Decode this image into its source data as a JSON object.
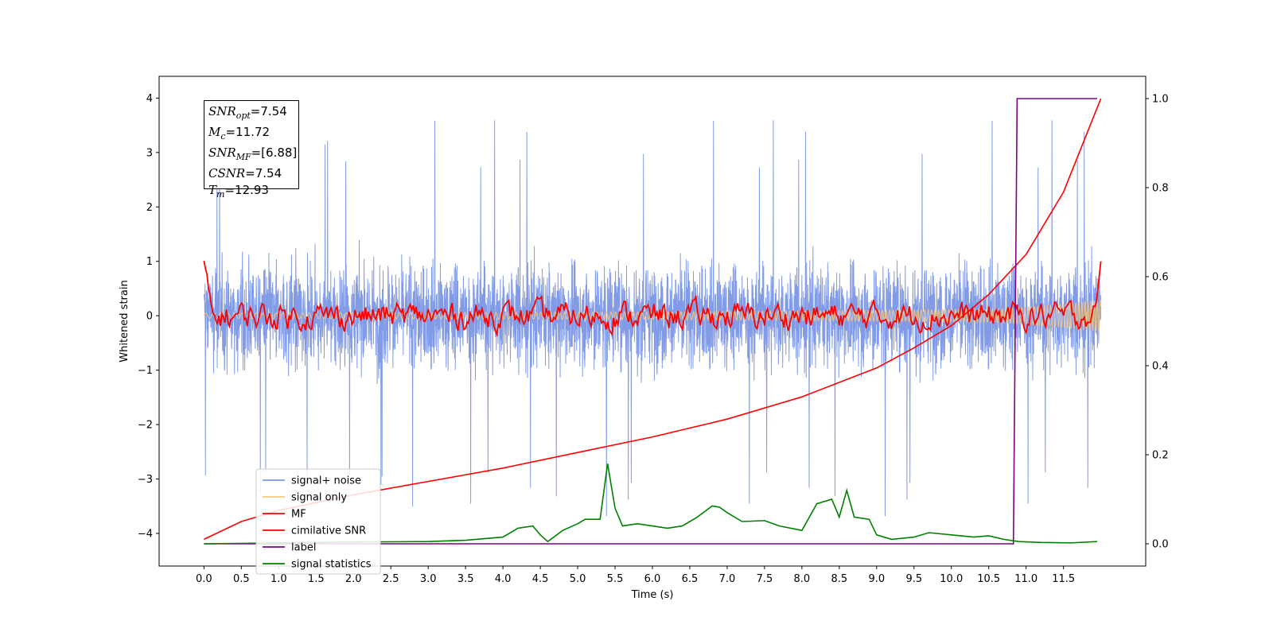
{
  "chart_data": {
    "type": "line",
    "xlabel": "Time (s)",
    "ylabel": "Whitened strain",
    "xlim": [
      -0.6,
      12.6
    ],
    "ylim": [
      -4.6,
      4.4
    ],
    "y2lim": [
      -0.05,
      1.05
    ],
    "x_ticks": [
      "0.0",
      "0.5",
      "1.0",
      "1.5",
      "2.0",
      "2.5",
      "3.0",
      "3.5",
      "4.0",
      "4.5",
      "5.0",
      "5.5",
      "6.0",
      "6.5",
      "7.0",
      "7.5",
      "8.0",
      "8.5",
      "9.0",
      "9.5",
      "10.0",
      "10.5",
      "11.0",
      "11.5"
    ],
    "y_ticks": [
      "4",
      "3",
      "2",
      "1",
      "0",
      "−1",
      "−2",
      "−3",
      "−4"
    ],
    "y2_ticks": [
      "1.0",
      "0.8",
      "0.6",
      "0.4",
      "0.2",
      "0.0"
    ],
    "annotation": {
      "snr_opt": {
        "sym": "SNR",
        "sub": "opt",
        "value": "=7.54"
      },
      "mc": {
        "sym": "M",
        "sub": "c",
        "value": "=11.72"
      },
      "snr_mf": {
        "sym": "SNR",
        "sub": "MF",
        "value": "=[6.88]"
      },
      "csnr": {
        "sym": "CSNR",
        "sub": "",
        "value": "=7.54"
      },
      "tm": {
        "sym": "T",
        "sub": "m",
        "value": "=12.93"
      }
    },
    "legend_position": "lower-left",
    "series": [
      {
        "name": "signal+ noise",
        "color": "#7b96e6",
        "axis": "left",
        "description_values": {
          "std": 1.0,
          "t_range": [
            0.0,
            12.0
          ],
          "max": 3.95,
          "min": -4.1
        }
      },
      {
        "name": "signal only",
        "color": "#f8c77e",
        "axis": "left",
        "envelope": {
          "t": [
            0.0,
            6.0,
            9.0,
            10.5,
            11.0,
            11.5,
            12.0
          ],
          "amp": [
            0.05,
            0.07,
            0.1,
            0.12,
            0.16,
            0.22,
            0.3
          ]
        }
      },
      {
        "name": "MF",
        "color": "#ff0000",
        "axis": "left",
        "values_sample": {
          "t": [
            0.0,
            0.05,
            0.1,
            12.0
          ],
          "y": [
            1.0,
            0.35,
            0.0,
            1.0
          ]
        }
      },
      {
        "name": "cimilative SNR",
        "color": "#ff0000",
        "axis": "right",
        "x": [
          0.0,
          0.5,
          1.0,
          2.0,
          3.0,
          4.0,
          5.0,
          6.0,
          7.0,
          8.0,
          9.0,
          9.5,
          10.0,
          10.5,
          11.0,
          11.5,
          12.0
        ],
        "y": [
          0.01,
          0.05,
          0.075,
          0.11,
          0.14,
          0.17,
          0.205,
          0.24,
          0.28,
          0.33,
          0.395,
          0.44,
          0.49,
          0.56,
          0.65,
          0.79,
          1.0
        ]
      },
      {
        "name": "label",
        "color": "#800080",
        "axis": "right",
        "x": [
          0.0,
          10.83,
          10.88,
          11.95
        ],
        "y": [
          0.0,
          0.0,
          1.0,
          1.0
        ]
      },
      {
        "name": "signal statistics",
        "color": "#008000",
        "axis": "right",
        "x": [
          0.0,
          1.0,
          2.0,
          3.0,
          3.5,
          4.0,
          4.2,
          4.4,
          4.5,
          4.6,
          4.8,
          5.0,
          5.1,
          5.3,
          5.4,
          5.45,
          5.5,
          5.6,
          5.8,
          6.0,
          6.2,
          6.4,
          6.6,
          6.8,
          6.9,
          7.0,
          7.2,
          7.5,
          7.7,
          8.0,
          8.2,
          8.4,
          8.5,
          8.6,
          8.7,
          8.9,
          9.0,
          9.2,
          9.5,
          9.7,
          10.0,
          10.3,
          10.5,
          10.7,
          10.9,
          11.2,
          11.6,
          11.95
        ],
        "y": [
          0.0,
          0.002,
          0.004,
          0.005,
          0.008,
          0.015,
          0.035,
          0.04,
          0.02,
          0.005,
          0.03,
          0.045,
          0.055,
          0.055,
          0.18,
          0.13,
          0.08,
          0.04,
          0.045,
          0.04,
          0.035,
          0.04,
          0.06,
          0.085,
          0.082,
          0.07,
          0.05,
          0.052,
          0.04,
          0.03,
          0.09,
          0.1,
          0.06,
          0.12,
          0.06,
          0.055,
          0.02,
          0.01,
          0.015,
          0.025,
          0.02,
          0.015,
          0.018,
          0.01,
          0.005,
          0.003,
          0.002,
          0.005
        ]
      }
    ]
  }
}
